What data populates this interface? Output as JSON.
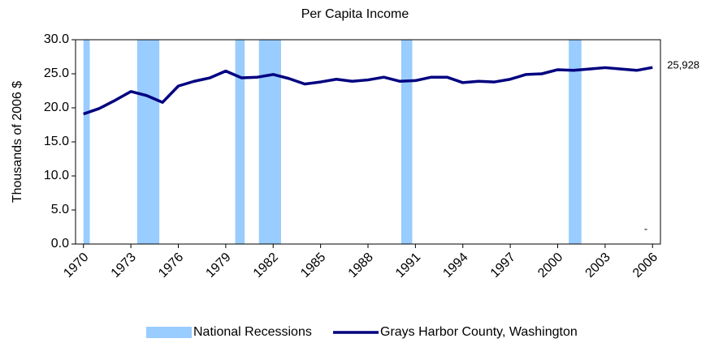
{
  "chart_data": {
    "type": "line",
    "title": "Per Capita Income",
    "y_label": "Thousands of 2006 $",
    "xlim": [
      1969.5,
      2006.5
    ],
    "xticks": [
      1970,
      1973,
      1976,
      1979,
      1982,
      1985,
      1988,
      1991,
      1994,
      1997,
      2000,
      2003,
      2006
    ],
    "ylim": [
      0,
      30
    ],
    "yticks": [
      {
        "value": 0,
        "label": "0.0"
      },
      {
        "value": 5,
        "label": "5.0"
      },
      {
        "value": 10,
        "label": "10.0"
      },
      {
        "value": 15,
        "label": "15.0"
      },
      {
        "value": 20,
        "label": "20.0"
      },
      {
        "value": 25,
        "label": "25.0"
      },
      {
        "value": 30,
        "label": "30.0"
      }
    ],
    "recessions": {
      "name": "National Recessions",
      "color": "#99ccff",
      "ranges": [
        [
          1970.0,
          1970.4
        ],
        [
          1973.4,
          1974.8
        ],
        [
          1979.6,
          1980.2
        ],
        [
          1981.1,
          1982.5
        ],
        [
          1990.1,
          1990.8
        ],
        [
          2000.7,
          2001.5
        ]
      ]
    },
    "x": [
      1970,
      1971,
      1972,
      1973,
      1974,
      1975,
      1976,
      1977,
      1978,
      1979,
      1980,
      1981,
      1982,
      1983,
      1984,
      1985,
      1986,
      1987,
      1988,
      1989,
      1990,
      1991,
      1992,
      1993,
      1994,
      1995,
      1996,
      1997,
      1998,
      1999,
      2000,
      2001,
      2002,
      2003,
      2004,
      2005,
      2006
    ],
    "series": [
      {
        "name": "Grays Harbor County, Washington",
        "color": "#000080",
        "values": [
          19.1,
          19.9,
          21.1,
          22.4,
          21.8,
          20.8,
          23.2,
          23.9,
          24.4,
          25.4,
          24.4,
          24.5,
          24.9,
          24.3,
          23.5,
          23.8,
          24.2,
          23.9,
          24.1,
          24.5,
          23.9,
          24.0,
          24.5,
          24.5,
          23.7,
          23.9,
          23.8,
          24.2,
          24.9,
          25.0,
          25.6,
          25.5,
          25.7,
          25.9,
          25.7,
          25.5,
          25.928
        ],
        "value_labels": [
          null,
          null,
          null,
          null,
          null,
          null,
          null,
          null,
          null,
          null,
          null,
          null,
          null,
          null,
          null,
          null,
          null,
          null,
          null,
          null,
          null,
          null,
          null,
          null,
          null,
          null,
          null,
          null,
          null,
          null,
          null,
          null,
          null,
          null,
          null,
          null,
          "25,928"
        ]
      }
    ],
    "annotation": "-"
  }
}
